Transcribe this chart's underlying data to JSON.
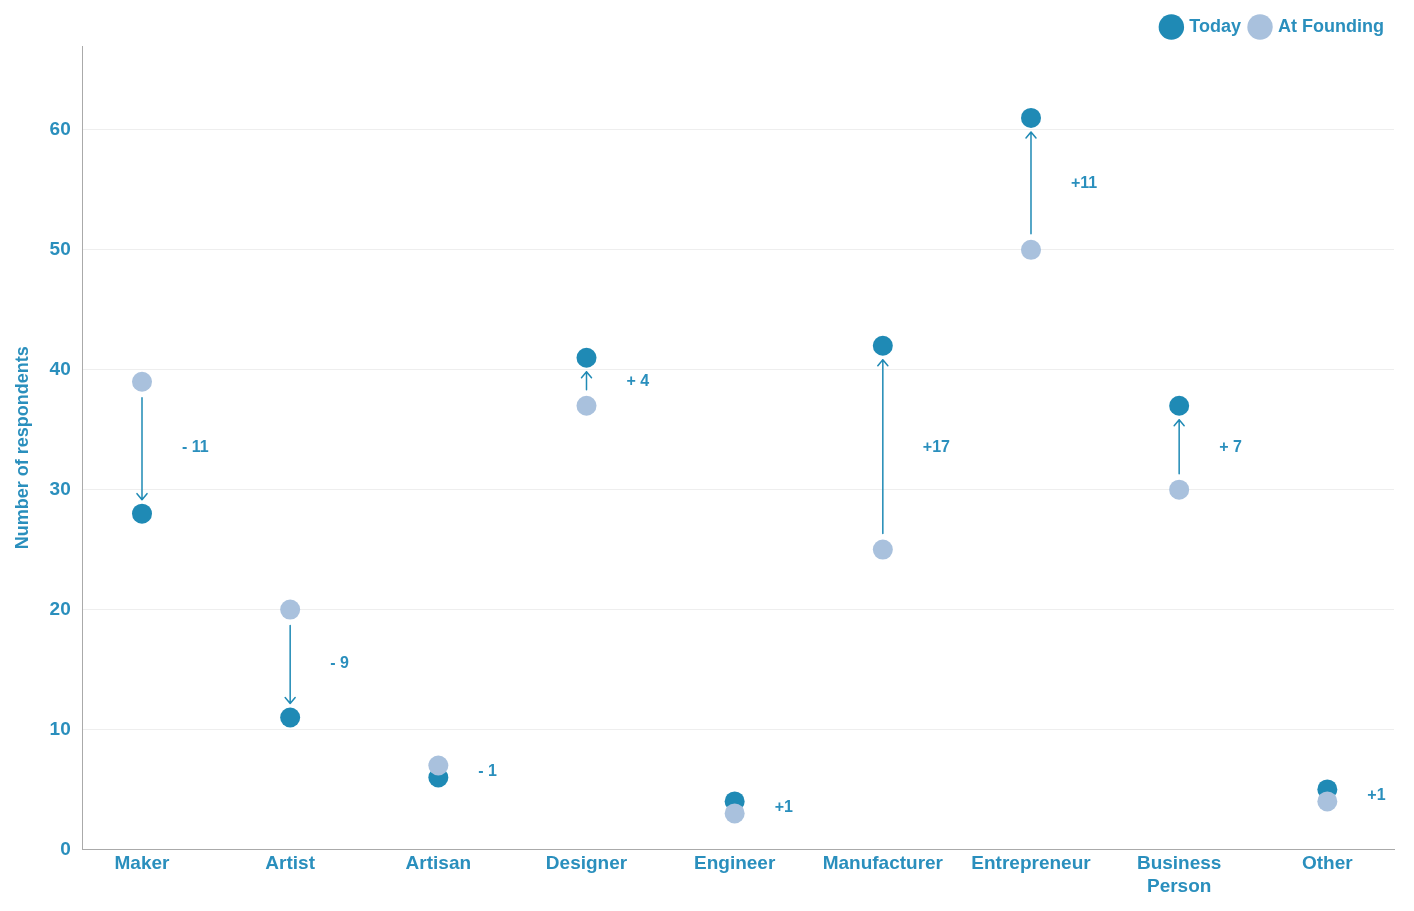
{
  "chart_data": {
    "type": "scatter",
    "ylabel": "Number of respondents",
    "categories": [
      "Maker",
      "Artist",
      "Artisan",
      "Designer",
      "Engineer",
      "Manufacturer",
      "Entrepreneur",
      "Business Person",
      "Other"
    ],
    "series": [
      {
        "name": "Today",
        "color": "#1f8ab5",
        "values": [
          28,
          11,
          6,
          41,
          4,
          42,
          61,
          37,
          5
        ]
      },
      {
        "name": "At Founding",
        "color": "#a9c1dd",
        "values": [
          39,
          20,
          7,
          37,
          3,
          25,
          50,
          30,
          4
        ]
      }
    ],
    "ylim": [
      0,
      67
    ],
    "yticks": [
      0,
      10,
      20,
      30,
      40,
      50,
      60
    ],
    "grid": "y",
    "legend": "top right",
    "marker": "circle",
    "annotations": [
      "- 11",
      "- 9",
      "- 1",
      "+ 4",
      "+1",
      "+17",
      "+11",
      "+ 7",
      "+1"
    ]
  }
}
